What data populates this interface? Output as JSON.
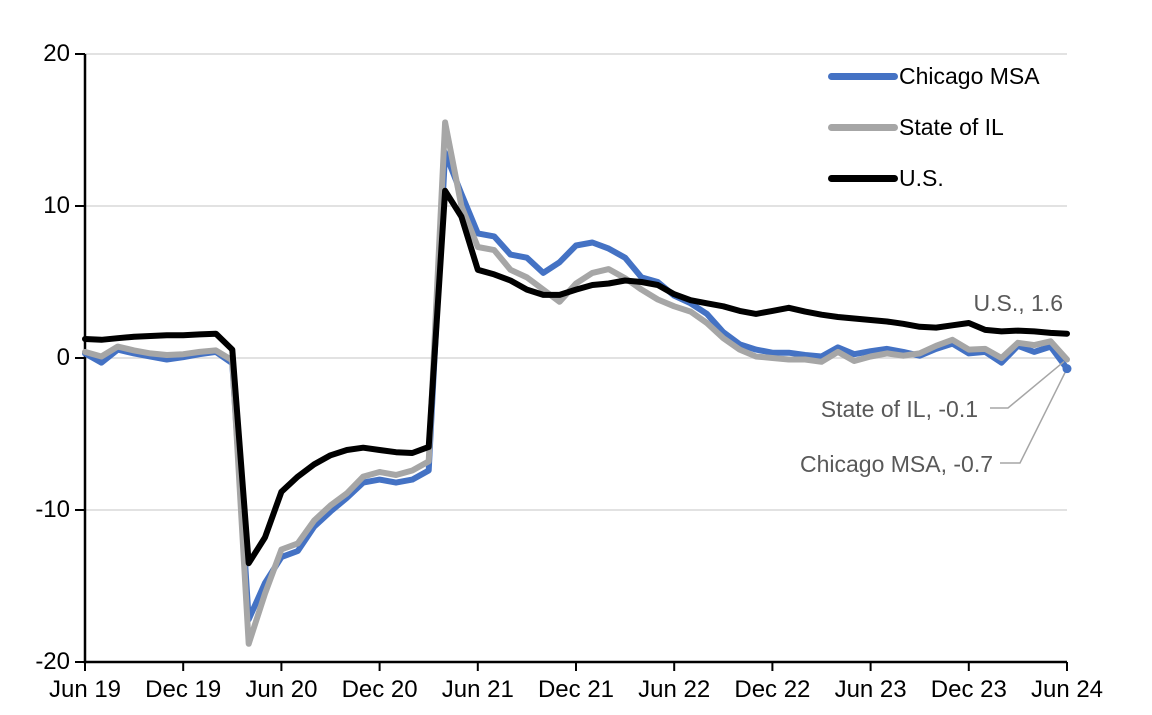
{
  "chart_data": {
    "type": "line",
    "title": "",
    "x_axis": {
      "tick_labels": [
        "Jun 19",
        "Dec 19",
        "Jun 20",
        "Dec 20",
        "Jun 21",
        "Dec 21",
        "Jun 22",
        "Dec 22",
        "Jun 23",
        "Dec 23",
        "Jun 24"
      ],
      "range": {
        "start": "Jun 2019",
        "end": "Jun 2024",
        "frequency": "monthly",
        "points": 61
      }
    },
    "y_axis": {
      "ticks": [
        20,
        10,
        0,
        -10,
        -20
      ],
      "min": -20,
      "max": 20,
      "interval": 10
    },
    "grid": "horizontal",
    "legend": {
      "position": "top-right",
      "order": [
        "Chicago MSA",
        "State of IL",
        "U.S."
      ]
    },
    "series": [
      {
        "name": "Chicago MSA",
        "color": "#4472C4",
        "end_label": "Chicago MSA, -0.7",
        "end_value": -0.7,
        "end_marker": true,
        "values": [
          0.3,
          -0.3,
          0.55,
          0.3,
          0.1,
          -0.1,
          0.05,
          0.25,
          0.4,
          -0.35,
          -17.2,
          -14.8,
          -13.1,
          -12.7,
          -11.1,
          -10.1,
          -9.2,
          -8.2,
          -8.0,
          -8.2,
          -8.0,
          -7.4,
          13.5,
          10.8,
          8.2,
          8.0,
          6.8,
          6.6,
          5.6,
          6.3,
          7.4,
          7.6,
          7.2,
          6.6,
          5.3,
          5.0,
          4.1,
          3.6,
          2.9,
          1.7,
          0.9,
          0.55,
          0.35,
          0.35,
          0.2,
          0.1,
          0.7,
          0.25,
          0.45,
          0.6,
          0.4,
          0.15,
          0.6,
          0.95,
          0.3,
          0.4,
          -0.3,
          0.8,
          0.4,
          0.75,
          -0.7
        ]
      },
      {
        "name": "State of IL",
        "color": "#A6A6A6",
        "end_label": "State of IL, -0.1",
        "end_value": -0.1,
        "end_marker": false,
        "values": [
          0.4,
          0.1,
          0.75,
          0.5,
          0.3,
          0.2,
          0.25,
          0.4,
          0.5,
          -0.15,
          -18.8,
          -15.5,
          -12.6,
          -12.2,
          -10.7,
          -9.7,
          -8.9,
          -7.8,
          -7.5,
          -7.7,
          -7.4,
          -6.8,
          15.5,
          10.0,
          7.3,
          7.1,
          5.8,
          5.3,
          4.5,
          3.7,
          4.9,
          5.6,
          5.85,
          5.25,
          4.5,
          3.85,
          3.4,
          3.05,
          2.3,
          1.3,
          0.55,
          0.1,
          0.0,
          -0.1,
          -0.1,
          -0.25,
          0.4,
          -0.2,
          0.1,
          0.3,
          0.15,
          0.3,
          0.8,
          1.2,
          0.55,
          0.6,
          0.0,
          1.0,
          0.85,
          1.1,
          -0.1
        ]
      },
      {
        "name": "U.S.",
        "color": "#000000",
        "end_label": "U.S., 1.6",
        "end_value": 1.6,
        "end_marker": false,
        "values": [
          1.25,
          1.2,
          1.3,
          1.4,
          1.45,
          1.5,
          1.5,
          1.55,
          1.6,
          0.55,
          -13.5,
          -11.8,
          -8.8,
          -7.8,
          -7.0,
          -6.4,
          -6.05,
          -5.9,
          -6.05,
          -6.2,
          -6.25,
          -5.85,
          11.0,
          9.3,
          5.8,
          5.5,
          5.1,
          4.5,
          4.15,
          4.15,
          4.5,
          4.8,
          4.9,
          5.1,
          5.0,
          4.8,
          4.2,
          3.8,
          3.6,
          3.4,
          3.1,
          2.9,
          3.1,
          3.3,
          3.05,
          2.85,
          2.7,
          2.6,
          2.5,
          2.4,
          2.25,
          2.05,
          2.0,
          2.15,
          2.3,
          1.85,
          1.75,
          1.8,
          1.75,
          1.65,
          1.6
        ]
      }
    ],
    "style": {
      "gridline_color": "#D9D9D9",
      "axis_color": "#000000",
      "data_label_color": "#595959",
      "leader_line_color": "#A6A6A6",
      "background": "#FFFFFF"
    }
  }
}
